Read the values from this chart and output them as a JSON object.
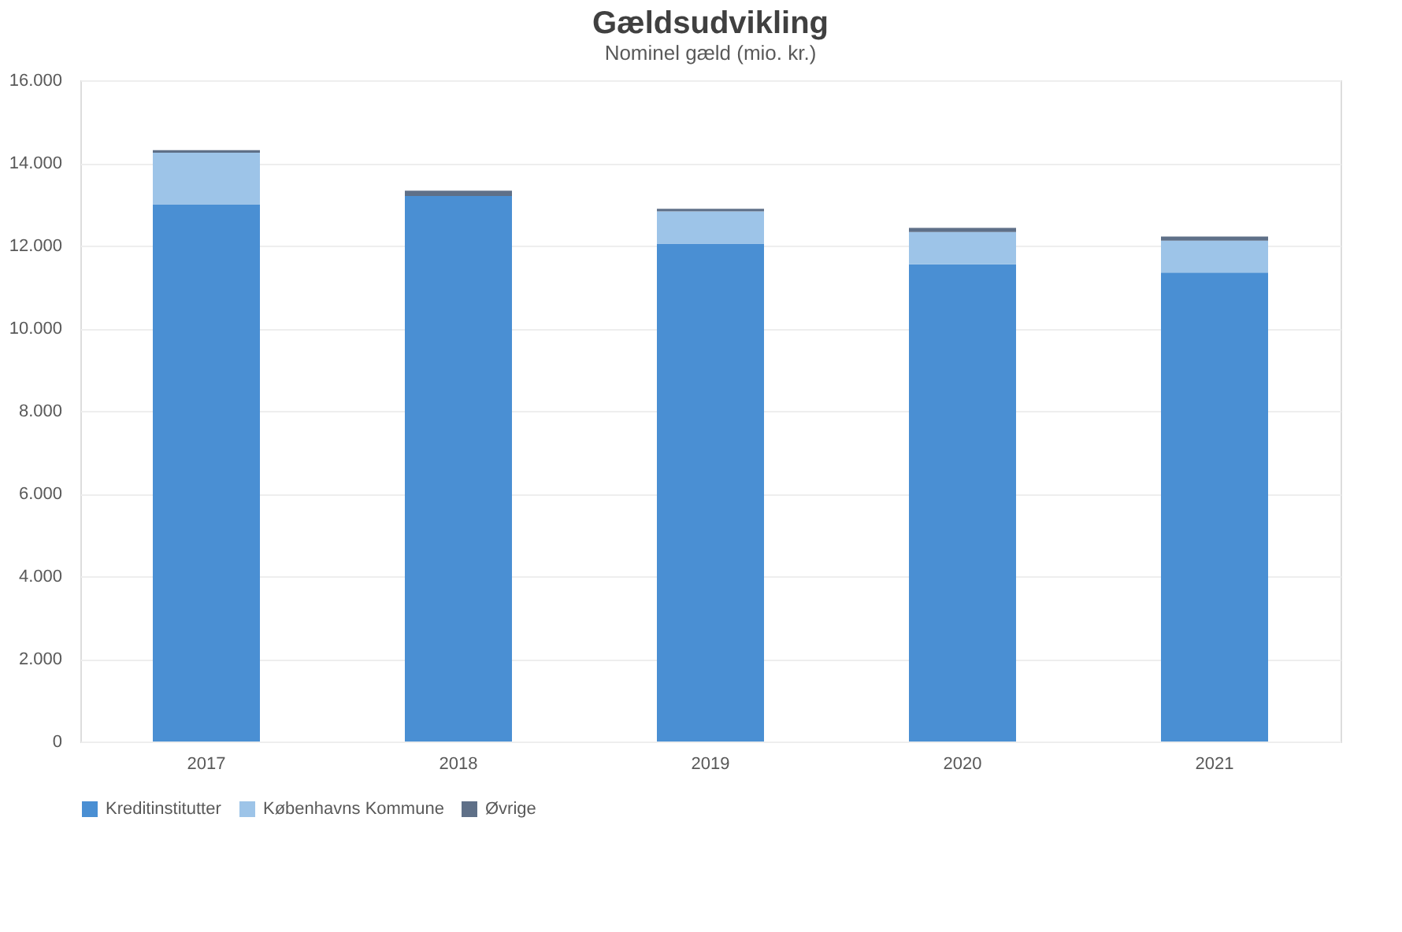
{
  "chart_data": {
    "type": "bar",
    "title": "Gældsudvikling",
    "subtitle": "Nominel gæld (mio. kr.)",
    "categories": [
      "2017",
      "2018",
      "2019",
      "2020",
      "2021"
    ],
    "stacked": true,
    "series": [
      {
        "name": "Kreditinstitutter",
        "color": "#4a8fd3",
        "values": [
          13000,
          13200,
          12050,
          11550,
          11350
        ]
      },
      {
        "name": "Københavns Kommune",
        "color": "#9dc4e8",
        "values": [
          1250,
          0,
          780,
          780,
          770
        ]
      },
      {
        "name": "Øvrige",
        "color": "#5f7088",
        "values": [
          60,
          130,
          60,
          100,
          100
        ]
      }
    ],
    "ylim": [
      0,
      16000
    ],
    "yticks": [
      {
        "value": 0,
        "label": "0"
      },
      {
        "value": 2000,
        "label": "2.000"
      },
      {
        "value": 4000,
        "label": "4.000"
      },
      {
        "value": 6000,
        "label": "6.000"
      },
      {
        "value": 8000,
        "label": "8.000"
      },
      {
        "value": 10000,
        "label": "10.000"
      },
      {
        "value": 12000,
        "label": "12.000"
      },
      {
        "value": 14000,
        "label": "14.000"
      },
      {
        "value": 16000,
        "label": "16.000"
      }
    ],
    "grid": "y",
    "legend": "bottom"
  }
}
